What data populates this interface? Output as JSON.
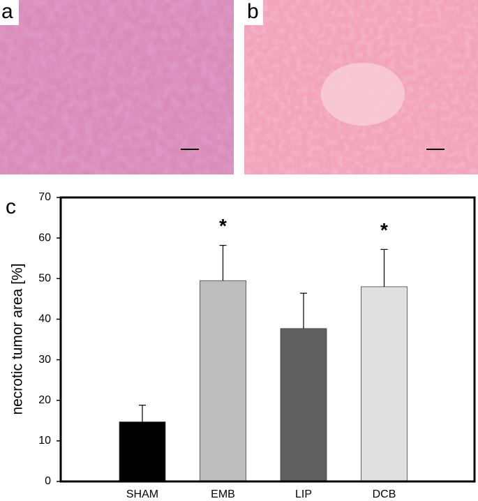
{
  "panel_labels": [
    "a",
    "b"
  ],
  "chart_data": {
    "type": "bar",
    "panel_label": "c",
    "ylabel": "necrotic tumor area  [%]",
    "categories": [
      "SHAM",
      "EMB",
      "LIP",
      "DCB"
    ],
    "series": [
      {
        "values": [
          14.7,
          49.5,
          37.7,
          48.0
        ],
        "errors": [
          4.1,
          8.7,
          8.7,
          9.2
        ],
        "colors": [
          "#000000",
          "#bdbdbd",
          "#606060",
          "#e0e0e0"
        ]
      }
    ],
    "markers": [
      null,
      "*",
      null,
      "*"
    ],
    "ylim": [
      0,
      70
    ],
    "yticks": [
      0,
      10,
      20,
      30,
      40,
      50,
      60,
      70
    ]
  }
}
